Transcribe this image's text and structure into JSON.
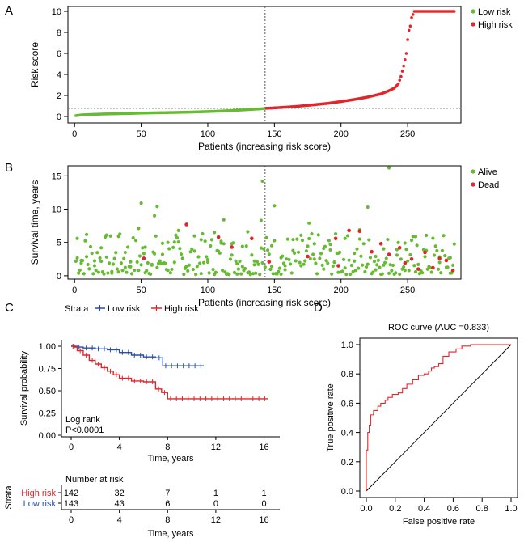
{
  "colors": {
    "low": "#66bb33",
    "high": "#e0262a",
    "km_low": "#2a4ea0",
    "km_high": "#e0262a",
    "alive": "#66bb33",
    "dead": "#e0262a"
  },
  "chart_data": [
    {
      "panel": "A",
      "type": "scatter",
      "xlabel": "Patients (increasing risk score)",
      "ylabel": "Risk score",
      "xlim": [
        -5,
        290
      ],
      "ylim": [
        0,
        10
      ],
      "x_ticks": [
        0,
        50,
        100,
        150,
        200,
        250
      ],
      "y_ticks": [
        0,
        2,
        4,
        6,
        8,
        10
      ],
      "cutoff_x": 143,
      "cutoff_y": 0.78,
      "legend": [
        "Low risk",
        "High risk"
      ],
      "series": [
        {
          "name": "Low risk",
          "points": [
            [
              1,
              0.08
            ],
            [
              5,
              0.15
            ],
            [
              10,
              0.18
            ],
            [
              20,
              0.23
            ],
            [
              30,
              0.26
            ],
            [
              40,
              0.29
            ],
            [
              50,
              0.32
            ],
            [
              60,
              0.35
            ],
            [
              70,
              0.37
            ],
            [
              80,
              0.4
            ],
            [
              90,
              0.43
            ],
            [
              100,
              0.47
            ],
            [
              110,
              0.52
            ],
            [
              120,
              0.58
            ],
            [
              130,
              0.65
            ],
            [
              140,
              0.73
            ],
            [
              143,
              0.77
            ]
          ]
        },
        {
          "name": "High risk",
          "points": [
            [
              144,
              0.78
            ],
            [
              150,
              0.82
            ],
            [
              160,
              0.9
            ],
            [
              170,
              1.0
            ],
            [
              180,
              1.12
            ],
            [
              190,
              1.25
            ],
            [
              200,
              1.42
            ],
            [
              210,
              1.62
            ],
            [
              220,
              1.85
            ],
            [
              230,
              2.15
            ],
            [
              235,
              2.4
            ],
            [
              240,
              2.7
            ],
            [
              243,
              3.1
            ],
            [
              245,
              3.8
            ],
            [
              247,
              4.8
            ],
            [
              249,
              6.0
            ],
            [
              250,
              7.3
            ],
            [
              251,
              8.2
            ],
            [
              252,
              8.6
            ],
            [
              253,
              9.4
            ],
            [
              255,
              10
            ],
            [
              285,
              10
            ]
          ]
        }
      ]
    },
    {
      "panel": "B",
      "type": "scatter",
      "xlabel": "Patients (increasing risk score)",
      "ylabel": "Survival time, years",
      "xlim": [
        -5,
        290
      ],
      "ylim": [
        -0.5,
        16.5
      ],
      "x_ticks": [
        0,
        50,
        100,
        150,
        200,
        250
      ],
      "y_ticks": [
        0,
        5,
        10,
        15
      ],
      "cutoff_x": 143,
      "legend": [
        "Alive",
        "Dead"
      ],
      "alive_sample": [
        [
          2,
          5.6
        ],
        [
          5,
          2.3
        ],
        [
          9,
          6.2
        ],
        [
          15,
          1.5
        ],
        [
          20,
          4.2
        ],
        [
          24,
          2.8
        ],
        [
          28,
          0.4
        ],
        [
          33,
          5.9
        ],
        [
          38,
          3.5
        ],
        [
          42,
          2.1
        ],
        [
          48,
          7.1
        ],
        [
          50,
          10.9
        ],
        [
          53,
          4.3
        ],
        [
          58,
          1.6
        ],
        [
          60,
          9.0
        ],
        [
          62,
          10.4
        ],
        [
          66,
          3.2
        ],
        [
          70,
          5.0
        ],
        [
          75,
          2.0
        ],
        [
          78,
          6.8
        ],
        [
          83,
          1.1
        ],
        [
          90,
          3.7
        ],
        [
          95,
          5.4
        ],
        [
          100,
          2.4
        ],
        [
          105,
          6.5
        ],
        [
          110,
          4.9
        ],
        [
          112,
          8.4
        ],
        [
          118,
          3.1
        ],
        [
          122,
          1.8
        ],
        [
          126,
          4.4
        ],
        [
          130,
          6.6
        ],
        [
          135,
          2.2
        ],
        [
          140,
          8.3
        ],
        [
          141,
          14.2
        ],
        [
          148,
          4.5
        ],
        [
          150,
          10.5
        ],
        [
          155,
          2.7
        ],
        [
          158,
          0.9
        ],
        [
          164,
          3.8
        ],
        [
          170,
          1.5
        ],
        [
          176,
          7.9
        ],
        [
          180,
          2.5
        ],
        [
          187,
          1.0
        ],
        [
          192,
          4.7
        ],
        [
          198,
          3.4
        ],
        [
          203,
          5.6
        ],
        [
          210,
          2.2
        ],
        [
          214,
          6.9
        ],
        [
          220,
          10.3
        ],
        [
          226,
          2.9
        ],
        [
          232,
          1.6
        ],
        [
          236,
          16.2
        ],
        [
          242,
          3.1
        ],
        [
          248,
          4.9
        ],
        [
          256,
          0.6
        ],
        [
          264,
          3.8
        ],
        [
          274,
          2.0
        ],
        [
          282,
          0.4
        ]
      ],
      "dead_sample": [
        [
          52,
          2.6
        ],
        [
          84,
          7.7
        ],
        [
          108,
          5.8
        ],
        [
          118,
          4.3
        ],
        [
          133,
          5.6
        ],
        [
          146,
          2.1
        ],
        [
          175,
          2.9
        ],
        [
          196,
          5.6
        ],
        [
          198,
          1.5
        ],
        [
          206,
          6.8
        ],
        [
          214,
          6.7
        ],
        [
          223,
          3.6
        ],
        [
          230,
          4.8
        ],
        [
          236,
          3.2
        ],
        [
          244,
          4.2
        ],
        [
          248,
          1.9
        ],
        [
          253,
          2.5
        ],
        [
          258,
          1.0
        ],
        [
          263,
          3.5
        ],
        [
          269,
          1.2
        ],
        [
          274,
          2.6
        ],
        [
          279,
          2.3
        ],
        [
          284,
          0.8
        ]
      ]
    },
    {
      "panel": "C",
      "type": "line",
      "subtype": "kaplan-meier",
      "legend_title": "Strata",
      "xlabel": "Time, years",
      "ylabel": "Survival probability",
      "xlim": [
        0,
        16.5
      ],
      "ylim": [
        0,
        1
      ],
      "x_ticks": [
        0,
        4,
        8,
        12,
        16
      ],
      "y_ticks": [
        0.0,
        0.25,
        0.5,
        0.75,
        1.0
      ],
      "annotation": [
        "Log rank",
        "P<0.0001"
      ],
      "series": [
        {
          "name": "Low risk",
          "steps": [
            [
              0,
              1.0
            ],
            [
              0.3,
              0.99
            ],
            [
              1,
              0.98
            ],
            [
              2,
              0.97
            ],
            [
              3,
              0.96
            ],
            [
              4,
              0.93
            ],
            [
              5,
              0.9
            ],
            [
              6,
              0.88
            ],
            [
              7,
              0.87
            ],
            [
              7.6,
              0.78
            ],
            [
              11,
              0.78
            ]
          ]
        },
        {
          "name": "High risk",
          "steps": [
            [
              0,
              1.0
            ],
            [
              0.5,
              0.95
            ],
            [
              1,
              0.9
            ],
            [
              1.5,
              0.84
            ],
            [
              2,
              0.8
            ],
            [
              2.5,
              0.76
            ],
            [
              3,
              0.72
            ],
            [
              3.5,
              0.68
            ],
            [
              4,
              0.64
            ],
            [
              5,
              0.61
            ],
            [
              6,
              0.6
            ],
            [
              7,
              0.52
            ],
            [
              7.5,
              0.48
            ],
            [
              8,
              0.41
            ],
            [
              16.3,
              0.41
            ]
          ]
        }
      ],
      "risk_table": {
        "title": "Number at risk",
        "row_label": "Strata",
        "times": [
          0,
          4,
          8,
          12,
          16
        ],
        "rows": [
          {
            "name": "High risk",
            "counts": [
              142,
              32,
              7,
              1,
              1
            ]
          },
          {
            "name": "Low risk",
            "counts": [
              143,
              43,
              6,
              0,
              0
            ]
          }
        ],
        "xlabel": "Time, years"
      }
    },
    {
      "panel": "D",
      "type": "line",
      "subtype": "roc",
      "title": "ROC curve (AUC =0.833)",
      "xlabel": "False positive rate",
      "ylabel": "True positive rate",
      "xlim": [
        0,
        1
      ],
      "ylim": [
        0,
        1
      ],
      "x_ticks": [
        "0.0",
        "0.2",
        "0.4",
        "0.6",
        "0.8",
        "1.0"
      ],
      "y_ticks": [
        "0.0",
        "0.2",
        "0.4",
        "0.6",
        "0.8",
        "1.0"
      ],
      "points": [
        [
          0,
          0
        ],
        [
          0,
          0.28
        ],
        [
          0.01,
          0.4
        ],
        [
          0.02,
          0.45
        ],
        [
          0.03,
          0.52
        ],
        [
          0.05,
          0.55
        ],
        [
          0.08,
          0.58
        ],
        [
          0.1,
          0.6
        ],
        [
          0.13,
          0.62
        ],
        [
          0.15,
          0.64
        ],
        [
          0.18,
          0.66
        ],
        [
          0.22,
          0.67
        ],
        [
          0.25,
          0.7
        ],
        [
          0.28,
          0.73
        ],
        [
          0.32,
          0.76
        ],
        [
          0.36,
          0.79
        ],
        [
          0.4,
          0.8
        ],
        [
          0.43,
          0.82
        ],
        [
          0.45,
          0.84
        ],
        [
          0.47,
          0.85
        ],
        [
          0.5,
          0.87
        ],
        [
          0.53,
          0.92
        ],
        [
          0.57,
          0.95
        ],
        [
          0.62,
          0.97
        ],
        [
          0.66,
          0.99
        ],
        [
          0.72,
          1.0
        ],
        [
          0.8,
          1.0
        ],
        [
          0.9,
          1.0
        ],
        [
          1.0,
          1.0
        ]
      ]
    }
  ],
  "labels": {
    "panel_a": "A",
    "panel_b": "B",
    "panel_c": "C",
    "panel_d": "D",
    "a_legend_low": "Low risk",
    "a_legend_high": "High risk",
    "b_legend_alive": "Alive",
    "b_legend_dead": "Dead",
    "c_strata": "Strata",
    "c_low": "Low risk",
    "c_high": "High risk",
    "c_logrank": "Log rank",
    "c_p": "P<0.0001",
    "c_number_at_risk": "Number at risk"
  }
}
